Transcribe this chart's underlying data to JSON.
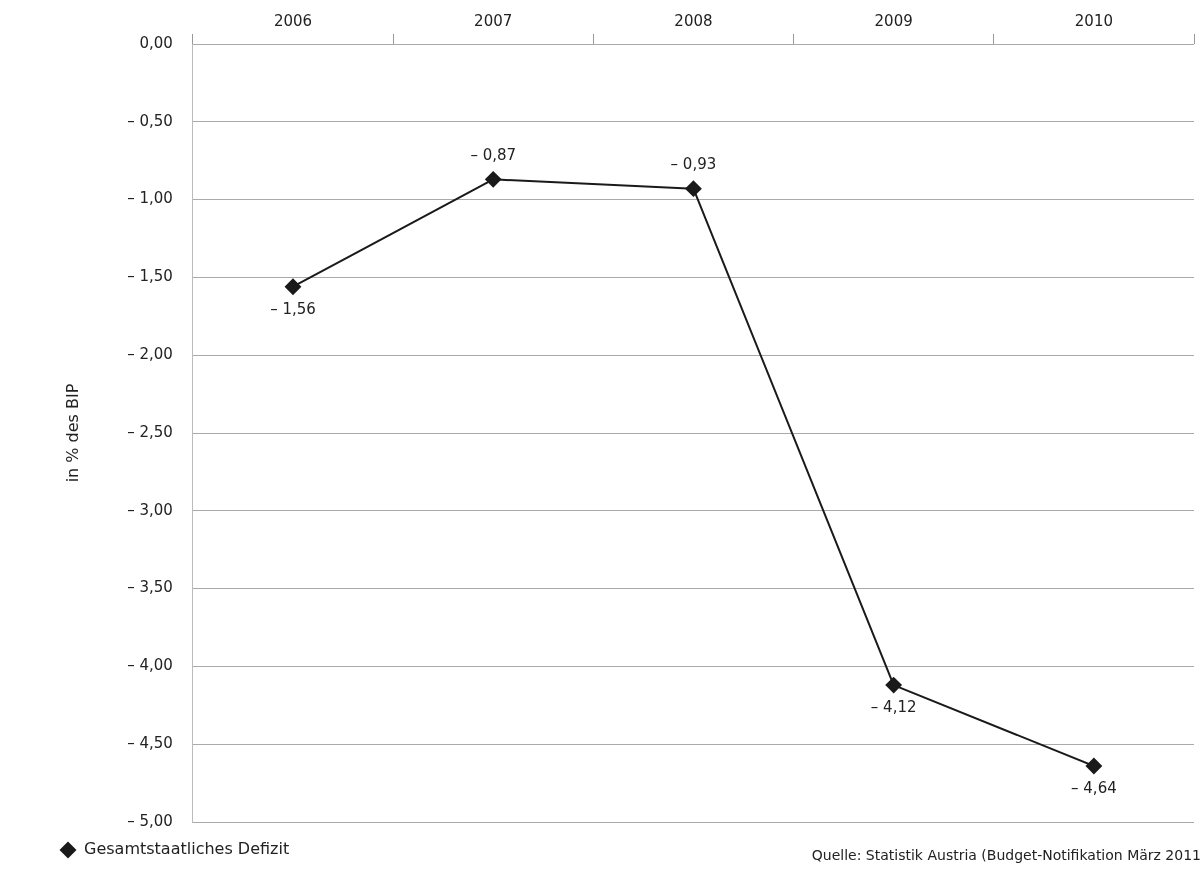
{
  "chart_data": {
    "type": "line",
    "ylabel": "in % des BIP",
    "categories": [
      "2006",
      "2007",
      "2008",
      "2009",
      "2010"
    ],
    "series": [
      {
        "name": "Gesamtstaatliches Defizit",
        "color": "#1a1a1a",
        "values": [
          -1.56,
          -0.87,
          -0.93,
          -4.12,
          -4.64
        ],
        "value_labels": [
          "– 1,56",
          "– 0,87",
          "– 0,93",
          "– 4,12",
          "– 4,64"
        ]
      }
    ],
    "ylim": [
      -5,
      0
    ],
    "yticks": [
      {
        "value": 0,
        "label": "0,00"
      },
      {
        "value": -0.5,
        "label": "– 0,50"
      },
      {
        "value": -1,
        "label": "– 1,00"
      },
      {
        "value": -1.5,
        "label": "– 1,50"
      },
      {
        "value": -2,
        "label": "– 2,00"
      },
      {
        "value": -2.5,
        "label": "– 2,50"
      },
      {
        "value": -3,
        "label": "– 3,00"
      },
      {
        "value": -3.5,
        "label": "– 3,50"
      },
      {
        "value": -4,
        "label": "– 4,00"
      },
      {
        "value": -4.5,
        "label": "– 4,50"
      },
      {
        "value": -5,
        "label": "– 5,00"
      }
    ],
    "grid": "y",
    "legend": "bottom left",
    "marker": "diamond",
    "line_style": "solid",
    "annotations": [
      "Quelle: Statistik Austria (Budget-Notifikation März 2011"
    ]
  }
}
